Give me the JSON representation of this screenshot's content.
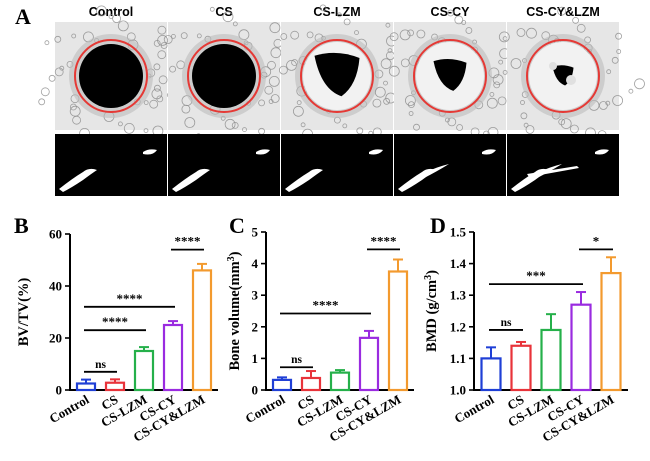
{
  "panel_labels": {
    "a": "A",
    "b": "B",
    "c": "C",
    "d": "D"
  },
  "micro_ct": {
    "groups": [
      "Control",
      "CS",
      "CS-LZM",
      "CS-CY",
      "CS-CY&LZM"
    ],
    "circle_color": "#e53935",
    "defect_fill": [
      1.0,
      0.95,
      0.75,
      0.55,
      0.35
    ]
  },
  "colors": {
    "Control": "#1f3fd6",
    "CS": "#e8333a",
    "CS-LZM": "#25b04a",
    "CS-CY": "#9a2be0",
    "CS-CY&LZM": "#f39a2e"
  },
  "chart_data": [
    {
      "type": "bar",
      "categories": [
        "Control",
        "CS",
        "CS-LZM",
        "CS-CY",
        "CS-CY&LZM"
      ],
      "values": [
        2.5,
        2.8,
        15,
        25,
        46
      ],
      "errors": [
        1.5,
        1.3,
        1.5,
        1.5,
        2.5
      ],
      "ylabel": "BV/TV(%)",
      "ylim": [
        0,
        60
      ],
      "yticks": [
        "0",
        "20",
        "40",
        "60"
      ],
      "brackets": [
        {
          "from": 0,
          "to": 1,
          "label": "ns",
          "at": 7
        },
        {
          "from": 0,
          "to": 2,
          "label": "****",
          "at": 23
        },
        {
          "from": 0,
          "to": 3,
          "label": "****",
          "at": 32
        },
        {
          "from": 3,
          "to": 4,
          "label": "****",
          "at": 54
        }
      ]
    },
    {
      "type": "bar",
      "categories": [
        "Control",
        "CS",
        "CS-LZM",
        "CS-CY",
        "CS-CY&LZM"
      ],
      "values": [
        0.32,
        0.38,
        0.55,
        1.65,
        3.75
      ],
      "errors": [
        0.08,
        0.22,
        0.08,
        0.22,
        0.38
      ],
      "ylabel": "Bone volume(mm3)",
      "ylabel_main": "Bone volume(mm",
      "ylabel_sup": "3",
      "ylabel_end": ")",
      "ylim": [
        0,
        5
      ],
      "yticks": [
        "0",
        "1",
        "2",
        "3",
        "4",
        "5"
      ],
      "brackets": [
        {
          "from": 0,
          "to": 1,
          "label": "ns",
          "at": 0.72
        },
        {
          "from": 0,
          "to": 3,
          "label": "****",
          "at": 2.42
        },
        {
          "from": 3,
          "to": 4,
          "label": "****",
          "at": 4.45
        }
      ]
    },
    {
      "type": "bar",
      "categories": [
        "Control",
        "CS",
        "CS-LZM",
        "CS-CY",
        "CS-CY&LZM"
      ],
      "values": [
        1.1,
        1.14,
        1.19,
        1.27,
        1.37
      ],
      "errors": [
        0.035,
        0.012,
        0.05,
        0.04,
        0.05
      ],
      "ylabel": "BMD (g/cm3)",
      "ylabel_main": "BMD (g/cm",
      "ylabel_sup": "3",
      "ylabel_end": ")",
      "ylim": [
        1.0,
        1.5
      ],
      "yticks": [
        "1.0",
        "1.1",
        "1.2",
        "1.3",
        "1.4",
        "1.5"
      ],
      "brackets": [
        {
          "from": 0,
          "to": 1,
          "label": "ns",
          "at": 1.19
        },
        {
          "from": 0,
          "to": 3,
          "label": "***",
          "at": 1.335
        },
        {
          "from": 3,
          "to": 4,
          "label": "*",
          "at": 1.445
        }
      ]
    }
  ]
}
